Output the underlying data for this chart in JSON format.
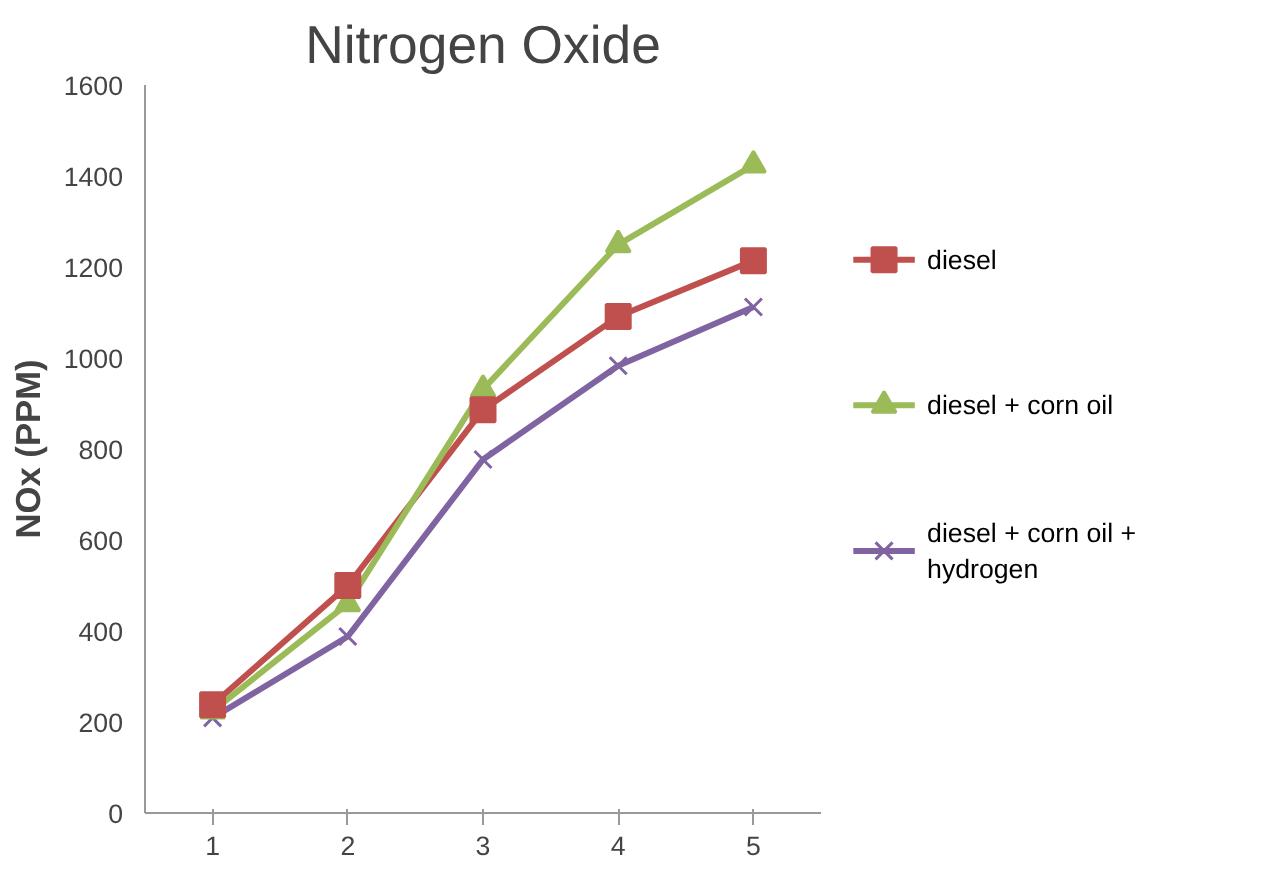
{
  "chart_data": {
    "type": "line",
    "title": "Nitrogen Oxide",
    "ylabel": "NOx (PPM)",
    "categories": [
      "1",
      "2",
      "3",
      "4",
      "5"
    ],
    "series": [
      {
        "name": "diesel",
        "color": "#c0504d",
        "marker": "square",
        "values": [
          238,
          500,
          886,
          1091,
          1214
        ]
      },
      {
        "name": "diesel + corn oil",
        "color": "#9bbb59",
        "marker": "triangle",
        "values": [
          224,
          460,
          931,
          1249,
          1424
        ]
      },
      {
        "name": "diesel + corn oil + hydrogen",
        "color": "#8064a2",
        "marker": "cross",
        "values": [
          209,
          388,
          777,
          983,
          1112
        ]
      }
    ],
    "ylim": [
      0,
      1600
    ],
    "yticks": [
      0,
      200,
      400,
      600,
      800,
      1000,
      1200,
      1400,
      1600
    ],
    "grid": false,
    "legend": "right"
  }
}
